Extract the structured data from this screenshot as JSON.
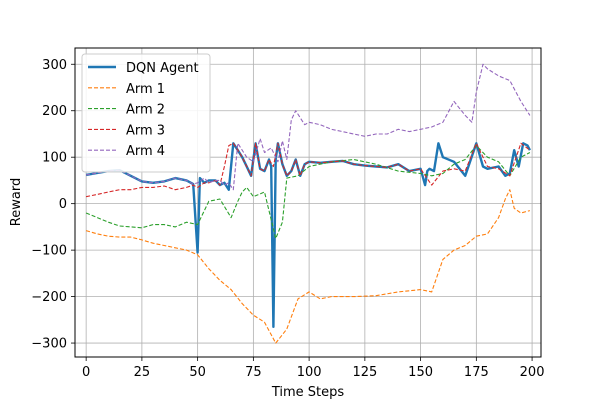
{
  "chart_data": {
    "type": "line",
    "title": "",
    "xlabel": "Time Steps",
    "ylabel": "Reward",
    "xlim": [
      -5,
      204
    ],
    "ylim": [
      -330,
      335
    ],
    "xticks": [
      0,
      25,
      50,
      75,
      100,
      125,
      150,
      175,
      200
    ],
    "yticks": [
      -300,
      -200,
      -100,
      0,
      100,
      200,
      300
    ],
    "grid": true,
    "legend_position": "top-left",
    "series": [
      {
        "name": "DQN Agent",
        "color": "#1f77b4",
        "style": "solid",
        "x": [
          0,
          5,
          10,
          15,
          20,
          25,
          30,
          35,
          40,
          45,
          48,
          50,
          51,
          53,
          55,
          58,
          60,
          62,
          64,
          66,
          68,
          70,
          72,
          74,
          76,
          78,
          80,
          82,
          83,
          84,
          85,
          86,
          88,
          90,
          92,
          94,
          96,
          98,
          100,
          105,
          110,
          115,
          120,
          125,
          130,
          135,
          140,
          145,
          150,
          152,
          153,
          154,
          156,
          158,
          160,
          165,
          170,
          175,
          178,
          180,
          185,
          188,
          190,
          192,
          194,
          196,
          198,
          199
        ],
        "y": [
          62,
          66,
          70,
          72,
          60,
          48,
          45,
          48,
          55,
          50,
          42,
          -105,
          55,
          45,
          50,
          50,
          40,
          45,
          30,
          130,
          115,
          100,
          80,
          60,
          130,
          75,
          70,
          95,
          80,
          -265,
          95,
          130,
          85,
          60,
          70,
          95,
          60,
          85,
          90,
          88,
          90,
          92,
          85,
          82,
          80,
          78,
          85,
          70,
          75,
          40,
          70,
          75,
          70,
          130,
          100,
          90,
          60,
          130,
          80,
          75,
          80,
          60,
          65,
          115,
          80,
          130,
          125,
          115
        ]
      },
      {
        "name": "Arm 1",
        "color": "#ff7f0e",
        "style": "dashed",
        "x": [
          0,
          5,
          10,
          15,
          20,
          25,
          30,
          35,
          40,
          45,
          50,
          55,
          60,
          65,
          70,
          75,
          80,
          85,
          90,
          95,
          100,
          105,
          110,
          120,
          130,
          140,
          150,
          155,
          160,
          165,
          170,
          175,
          180,
          185,
          188,
          190,
          192,
          195,
          199
        ],
        "y": [
          -58,
          -65,
          -70,
          -72,
          -72,
          -78,
          -85,
          -90,
          -95,
          -100,
          -110,
          -140,
          -165,
          -185,
          -215,
          -240,
          -255,
          -300,
          -270,
          -205,
          -190,
          -205,
          -200,
          -200,
          -198,
          -190,
          -185,
          -190,
          -120,
          -100,
          -90,
          -70,
          -65,
          -30,
          10,
          30,
          -10,
          -20,
          -15
        ]
      },
      {
        "name": "Arm 2",
        "color": "#2ca02c",
        "style": "dashed",
        "x": [
          0,
          5,
          10,
          15,
          20,
          25,
          30,
          35,
          40,
          45,
          50,
          52,
          55,
          60,
          65,
          68,
          70,
          72,
          75,
          80,
          85,
          88,
          90,
          95,
          100,
          110,
          120,
          130,
          140,
          150,
          155,
          160,
          165,
          170,
          175,
          180,
          185,
          190,
          195,
          199
        ],
        "y": [
          -20,
          -30,
          -40,
          -48,
          -50,
          -52,
          -45,
          -45,
          -50,
          -40,
          -45,
          -25,
          5,
          10,
          -30,
          5,
          25,
          35,
          15,
          25,
          -75,
          -40,
          55,
          60,
          80,
          90,
          95,
          85,
          70,
          65,
          60,
          65,
          85,
          95,
          125,
          100,
          90,
          60,
          100,
          110
        ]
      },
      {
        "name": "Arm 3",
        "color": "#d62728",
        "style": "dashed",
        "x": [
          0,
          5,
          10,
          15,
          20,
          25,
          30,
          35,
          40,
          45,
          48,
          50,
          53,
          55,
          58,
          60,
          62,
          64,
          66,
          68,
          70,
          72,
          74,
          76,
          78,
          80,
          82,
          84,
          86,
          88,
          90,
          92,
          94,
          96,
          98,
          100,
          105,
          110,
          115,
          120,
          125,
          130,
          135,
          140,
          145,
          150,
          155,
          160,
          165,
          170,
          175,
          180,
          185,
          190,
          195,
          199
        ],
        "y": [
          15,
          20,
          25,
          30,
          30,
          35,
          35,
          38,
          30,
          35,
          40,
          35,
          45,
          45,
          50,
          40,
          80,
          125,
          130,
          115,
          100,
          80,
          60,
          130,
          75,
          70,
          95,
          80,
          130,
          85,
          60,
          70,
          95,
          60,
          85,
          90,
          88,
          90,
          92,
          85,
          82,
          80,
          78,
          85,
          70,
          75,
          40,
          70,
          75,
          70,
          130,
          80,
          75,
          60,
          130,
          115
        ]
      },
      {
        "name": "Arm 4",
        "color": "#9467bd",
        "style": "dashed",
        "x": [
          0,
          5,
          10,
          15,
          20,
          25,
          30,
          35,
          40,
          45,
          48,
          50,
          53,
          55,
          58,
          60,
          62,
          64,
          66,
          68,
          70,
          72,
          75,
          78,
          80,
          83,
          86,
          88,
          90,
          92,
          94,
          96,
          98,
          100,
          105,
          110,
          115,
          120,
          125,
          130,
          135,
          140,
          145,
          150,
          155,
          160,
          165,
          170,
          173,
          175,
          178,
          180,
          185,
          190,
          195,
          199
        ],
        "y": [
          62,
          66,
          70,
          72,
          60,
          48,
          45,
          48,
          55,
          50,
          42,
          45,
          55,
          45,
          50,
          50,
          40,
          45,
          30,
          130,
          115,
          100,
          90,
          140,
          110,
          120,
          90,
          135,
          95,
          180,
          200,
          185,
          170,
          175,
          170,
          160,
          155,
          150,
          145,
          150,
          150,
          160,
          155,
          160,
          165,
          175,
          220,
          190,
          175,
          240,
          300,
          290,
          275,
          265,
          220,
          190
        ]
      }
    ]
  }
}
